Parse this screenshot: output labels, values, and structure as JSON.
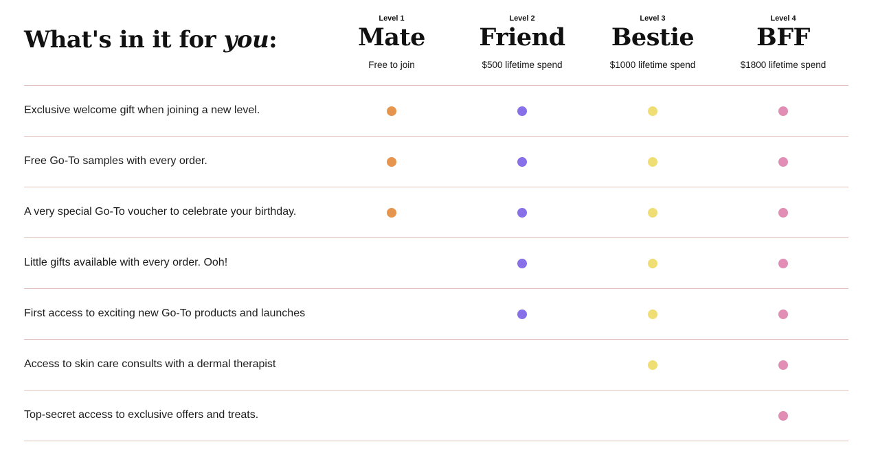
{
  "heading": {
    "prefix": "What's in it for ",
    "emphasis": "you",
    "suffix": ":"
  },
  "tiers": [
    {
      "level": "Level 1",
      "name": "Mate",
      "spend": "Free to join",
      "color": "#e6954e"
    },
    {
      "level": "Level 2",
      "name": "Friend",
      "spend": "$500 lifetime spend",
      "color": "#8870e8"
    },
    {
      "level": "Level 3",
      "name": "Bestie",
      "spend": "$1000 lifetime spend",
      "color": "#efde74"
    },
    {
      "level": "Level 4",
      "name": "BFF",
      "spend": "$1800 lifetime spend",
      "color": "#e18db5"
    }
  ],
  "benefits": [
    {
      "label": "Exclusive welcome gift when joining a new level.",
      "tiers": [
        true,
        true,
        true,
        true
      ]
    },
    {
      "label": "Free Go-To samples with every order.",
      "tiers": [
        true,
        true,
        true,
        true
      ]
    },
    {
      "label": "A very special Go-To voucher to celebrate your birthday.",
      "tiers": [
        true,
        true,
        true,
        true
      ]
    },
    {
      "label": "Little gifts available with every order. Ooh!",
      "tiers": [
        false,
        true,
        true,
        true
      ]
    },
    {
      "label": "First access to exciting new Go-To products and launches",
      "tiers": [
        false,
        true,
        true,
        true
      ]
    },
    {
      "label": "Access to skin care consults with a dermal therapist",
      "tiers": [
        false,
        false,
        true,
        true
      ]
    },
    {
      "label": "Top-secret access to exclusive offers and treats.",
      "tiers": [
        false,
        false,
        false,
        true
      ]
    }
  ]
}
